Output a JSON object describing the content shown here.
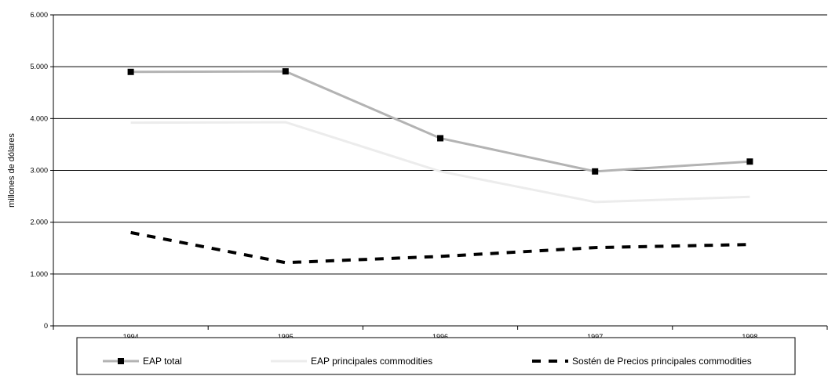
{
  "chart_data": {
    "type": "line",
    "categories": [
      "1994",
      "1995",
      "1996",
      "1997",
      "1998"
    ],
    "ylabel": "millones de dólares",
    "ylim": [
      0,
      6000
    ],
    "yticks": [
      0,
      1000,
      2000,
      3000,
      4000,
      5000,
      6000
    ],
    "ytick_labels": [
      "0",
      "1.000",
      "2.000",
      "3.000",
      "4.000",
      "5.000",
      "6.000"
    ],
    "grid": true,
    "legend_position": "bottom",
    "series": [
      {
        "name": "EAP total",
        "values": [
          4900,
          4910,
          3620,
          2980,
          3170
        ],
        "color": "#b3b3b3",
        "style": "solid",
        "marker": "square"
      },
      {
        "name": "EAP principales commodities",
        "values": [
          3920,
          3930,
          2980,
          2390,
          2490
        ],
        "color": "#ececec",
        "style": "solid",
        "marker": "none"
      },
      {
        "name": "Sostén de Precios principales commodities",
        "values": [
          1800,
          1220,
          1340,
          1510,
          1570
        ],
        "color": "#000000",
        "style": "dashed",
        "marker": "none"
      }
    ]
  }
}
